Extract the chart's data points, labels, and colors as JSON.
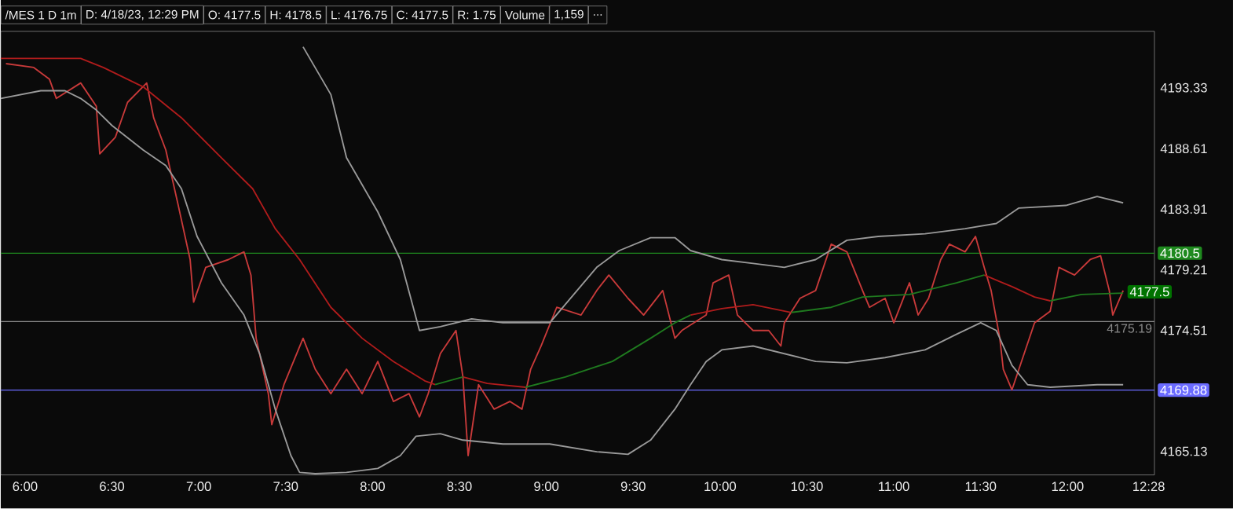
{
  "chart_data": {
    "type": "line",
    "annotations": [
      "/MES 1 D 1m",
      "D: 4/18/23, 12:29 PM",
      "O: 4177.5",
      "H: 4178.5",
      "L: 4176.75",
      "C: 4177.5",
      "R: 1.75",
      "Volume",
      "1,159",
      "...",
      {
        "text": "4177.5",
        "x": 12.32,
        "y": 4177.5
      }
    ],
    "series": [
      {
        "color": "#c83a3a",
        "x": [
          5.89,
          6.05,
          6.14,
          6.18,
          6.32,
          6.41,
          6.43,
          6.52,
          6.59,
          6.7,
          6.74,
          6.81,
          6.88,
          6.95,
          6.97,
          7.04,
          7.17,
          7.26,
          7.3,
          7.33,
          7.4,
          7.42,
          7.49,
          7.6,
          7.67,
          7.76,
          7.85,
          7.94,
          8.03,
          8.12,
          8.21,
          8.27,
          8.32,
          8.39,
          8.48,
          8.52,
          8.55,
          8.61,
          8.7,
          8.79,
          8.86,
          8.91,
          8.97,
          9.06,
          9.2,
          9.29,
          9.36,
          9.47,
          9.56,
          9.67,
          9.74,
          9.78,
          9.85,
          9.92,
          9.96,
          10.05,
          10.1,
          10.19,
          10.28,
          10.35,
          10.37,
          10.46,
          10.55,
          10.64,
          10.73,
          10.82,
          10.86,
          10.95,
          11.0,
          11.09,
          11.14,
          11.2,
          11.27,
          11.32,
          11.41,
          11.47,
          11.52,
          11.56,
          11.61,
          11.63,
          11.68,
          11.72,
          11.81,
          11.9,
          11.95,
          12.04,
          12.13,
          12.19,
          12.24,
          12.26,
          12.32
        ],
        "values": [
          4195.2,
          4194.9,
          4194.0,
          4192.5,
          4193.7,
          4191.9,
          4188.2,
          4189.5,
          4192.2,
          4193.7,
          4191.0,
          4188.5,
          4184.3,
          4180.0,
          4176.7,
          4179.4,
          4180.0,
          4180.6,
          4178.8,
          4173.9,
          4169.6,
          4167.2,
          4170.3,
          4173.9,
          4171.5,
          4169.6,
          4171.5,
          4169.6,
          4172.1,
          4169.0,
          4169.6,
          4167.8,
          4169.6,
          4172.7,
          4174.5,
          4170.9,
          4164.8,
          4170.3,
          4168.4,
          4169.0,
          4168.4,
          4171.5,
          4173.3,
          4176.3,
          4175.7,
          4177.6,
          4178.8,
          4177.0,
          4175.7,
          4177.6,
          4173.9,
          4174.5,
          4175.1,
          4175.7,
          4178.2,
          4178.8,
          4175.7,
          4174.5,
          4174.5,
          4173.3,
          4175.1,
          4177.0,
          4177.6,
          4181.2,
          4180.6,
          4177.6,
          4176.3,
          4177.0,
          4175.1,
          4178.2,
          4175.7,
          4177.0,
          4180.0,
          4181.2,
          4180.6,
          4181.8,
          4179.4,
          4177.6,
          4173.9,
          4171.5,
          4169.9,
          4171.5,
          4175.1,
          4176.0,
          4179.4,
          4178.8,
          4180.0,
          4180.3,
          4177.6,
          4175.7,
          4177.6
        ]
      },
      {
        "color": "#b01c1c",
        "x": [
          5.86,
          6.32,
          6.45,
          6.68,
          6.9,
          7.13,
          7.31,
          7.44,
          7.58,
          7.76,
          7.94,
          8.12,
          8.3,
          8.36,
          8.44,
          8.52,
          8.66,
          8.88,
          9.5,
          9.83,
          10.01,
          10.19,
          10.41,
          11.0,
          11.52,
          11.68,
          11.81,
          11.9
        ],
        "values": [
          4195.6,
          4195.6,
          4194.9,
          4193.4,
          4191.0,
          4187.9,
          4185.5,
          4182.4,
          4180.0,
          4176.3,
          4173.9,
          4172.1,
          4170.6,
          4170.3,
          null,
          4170.9,
          4170.4,
          4170.1,
          null,
          4175.7,
          4176.2,
          4176.5,
          4175.9,
          null,
          4178.8,
          4177.9,
          4177.1,
          4176.8
        ]
      },
      {
        "color": "#1f7a1f",
        "x": [
          8.36,
          8.52,
          8.7,
          8.88,
          9.11,
          9.38,
          9.6,
          9.74,
          9.83,
          10.1,
          10.41,
          10.64,
          10.82,
          11.09,
          11.36,
          11.52,
          11.7,
          11.9,
          12.08,
          12.32
        ],
        "values": [
          4170.3,
          4170.9,
          null,
          4170.1,
          4170.9,
          4172.1,
          4173.9,
          4175.1,
          4175.7,
          null,
          4175.9,
          4176.3,
          4177.1,
          4177.3,
          4178.2,
          4178.8,
          null,
          4176.8,
          4177.3,
          4177.4
        ]
      },
      {
        "color": "#9a9a9a",
        "x": [
          7.6,
          7.76,
          7.85,
          8.03,
          8.16,
          8.27,
          8.39,
          8.57,
          8.75,
          9.02,
          9.29,
          9.42,
          9.6,
          9.74,
          9.83,
          10.01,
          10.19,
          10.37,
          10.55,
          10.73,
          10.91,
          11.18,
          11.41,
          11.59,
          11.72,
          11.99,
          12.17,
          12.32
        ],
        "values": [
          4196.5,
          4192.8,
          4187.9,
          4183.7,
          4180.0,
          4174.5,
          4174.8,
          4175.4,
          4175.1,
          4175.1,
          4179.4,
          4180.7,
          4181.7,
          4181.7,
          4180.7,
          4180.0,
          4179.7,
          4179.4,
          4180.0,
          4181.5,
          4181.8,
          4182.0,
          4182.4,
          4182.8,
          4184.0,
          4184.2,
          4184.9,
          4184.4
        ]
      },
      {
        "color": "#9a9a9a",
        "x": [
          5.86,
          6.09,
          6.23,
          6.32,
          6.41,
          6.5,
          6.68,
          6.81,
          6.9,
          6.99,
          7.13,
          7.26,
          7.35,
          7.44,
          7.53,
          7.58,
          7.67,
          7.85,
          8.03,
          8.16,
          8.25,
          8.39,
          8.52,
          8.75,
          9.02,
          9.29,
          9.47,
          9.6,
          9.74,
          9.83,
          9.92,
          10.01,
          10.19,
          10.37,
          10.55,
          10.73,
          10.95,
          11.18,
          11.36,
          11.5,
          11.59,
          11.68,
          11.77,
          11.9,
          12.17,
          12.32
        ],
        "values": [
          4192.5,
          4193.1,
          4193.1,
          4192.5,
          4191.6,
          4190.4,
          4188.5,
          4187.3,
          4185.5,
          4181.8,
          4178.2,
          4175.7,
          4172.7,
          4168.4,
          4164.8,
          4163.5,
          4163.4,
          4163.5,
          4163.8,
          4164.8,
          4166.3,
          4166.5,
          4166.0,
          4165.7,
          4165.7,
          4165.1,
          4164.9,
          4166.0,
          4168.4,
          4170.3,
          4172.1,
          4173.0,
          4173.3,
          4172.7,
          4172.1,
          4172.0,
          4172.4,
          4173.0,
          4174.2,
          4175.1,
          4174.5,
          4171.8,
          4170.3,
          4170.1,
          4170.3,
          4170.3
        ]
      }
    ],
    "xlim": [
      5.86,
      12.5
    ],
    "ylim": [
      4163.3,
      4197.7
    ],
    "xticks": [
      {
        "value": 6,
        "label": "6:00"
      },
      {
        "value": 6.5,
        "label": "6:30"
      },
      {
        "value": 7,
        "label": "7:00"
      },
      {
        "value": 7.5,
        "label": "7:30"
      },
      {
        "value": 8,
        "label": "8:00"
      },
      {
        "value": 8.5,
        "label": "8:30"
      },
      {
        "value": 9,
        "label": "9:00"
      },
      {
        "value": 9.5,
        "label": "9:30"
      },
      {
        "value": 10,
        "label": "10:00"
      },
      {
        "value": 10.5,
        "label": "10:30"
      },
      {
        "value": 11,
        "label": "11:00"
      },
      {
        "value": 11.5,
        "label": "11:30"
      },
      {
        "value": 12,
        "label": "12:00"
      },
      {
        "value": 12.4667,
        "label": "12:28"
      }
    ],
    "yticks": [
      4165.13,
      4174.51,
      4179.21,
      4183.91,
      4188.61,
      4193.33
    ],
    "ref_lines": [
      {
        "axis": "y",
        "value": 4180.5,
        "label": "4180.5",
        "color": "#1f8a1f"
      },
      {
        "axis": "y",
        "value": 4175.19,
        "label": "4175.19",
        "color": "#8a8a8a"
      },
      {
        "axis": "y",
        "value": 4169.88,
        "label": "4169.88",
        "color": "#6b6bff"
      }
    ]
  }
}
